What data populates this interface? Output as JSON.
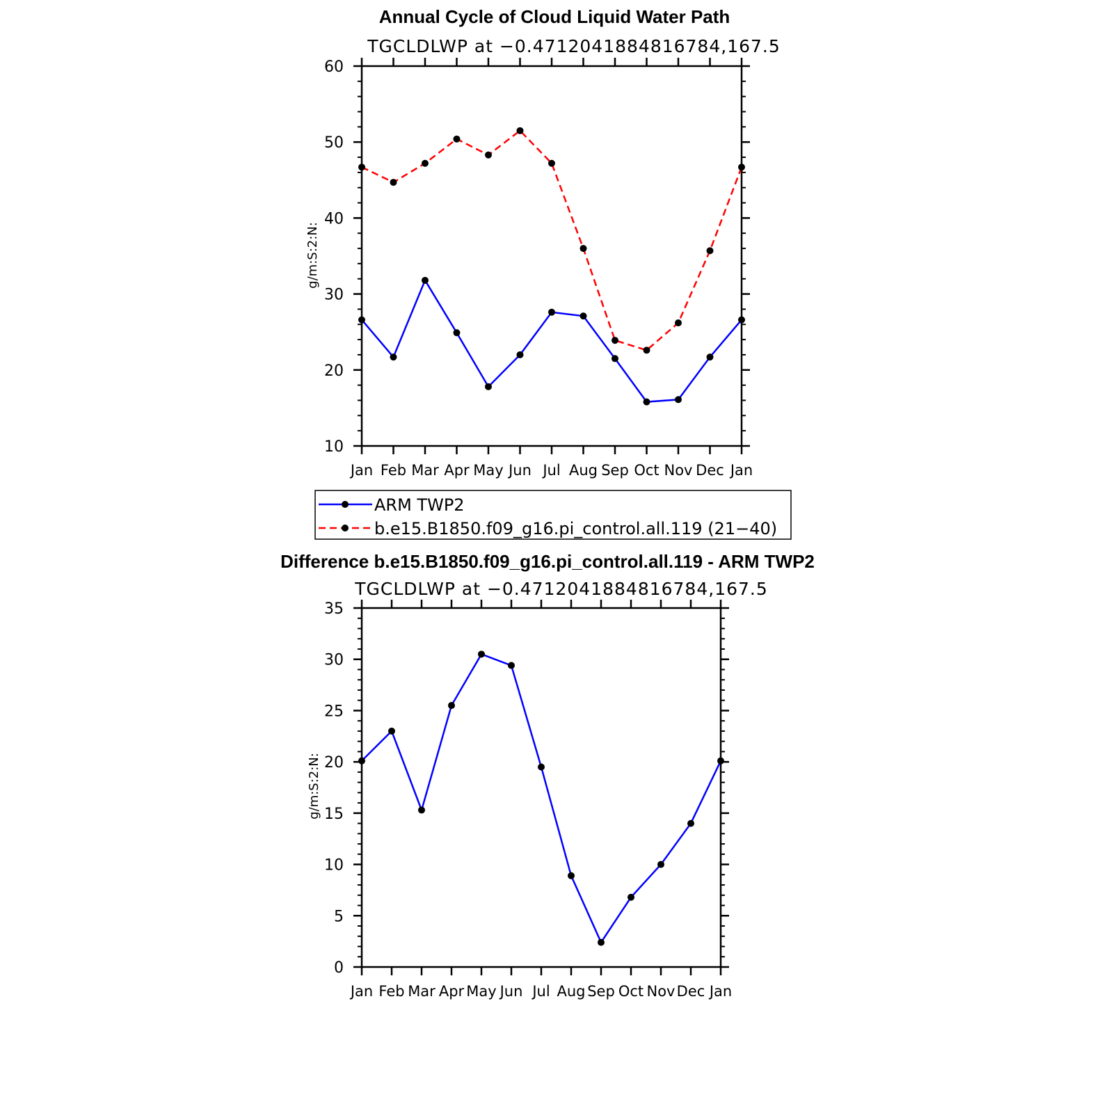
{
  "chart_data": [
    {
      "type": "line",
      "title": "Annual Cycle of Cloud Liquid Water Path",
      "subtitle": "TGCLDLWP at −0.4712041884816784,167.5",
      "xlabel": "",
      "ylabel": "g/m:S:2:N:",
      "categories": [
        "Jan",
        "Feb",
        "Mar",
        "Apr",
        "May",
        "Jun",
        "Jul",
        "Aug",
        "Sep",
        "Oct",
        "Nov",
        "Dec",
        "Jan"
      ],
      "ylim": [
        10,
        60
      ],
      "yticks": [
        "10",
        "20",
        "30",
        "40",
        "50",
        "60"
      ],
      "series": [
        {
          "name": "ARM  TWP2",
          "color": "#0000ff",
          "style": "solid",
          "values": [
            26.6,
            21.7,
            31.8,
            24.9,
            17.8,
            22.0,
            27.6,
            27.1,
            21.5,
            15.8,
            16.1,
            21.7,
            26.6
          ]
        },
        {
          "name": "b.e15.B1850.f09_g16.pi_control.all.119  (21−40)",
          "color": "#ff0000",
          "style": "dashed",
          "values": [
            46.7,
            44.7,
            47.2,
            50.4,
            48.3,
            51.5,
            47.2,
            36.0,
            23.9,
            22.6,
            26.2,
            35.7,
            46.7
          ]
        }
      ],
      "legend": "below"
    },
    {
      "type": "line",
      "title": "Difference b.e15.B1850.f09_g16.pi_control.all.119 - ARM TWP2",
      "subtitle": "TGCLDLWP at −0.4712041884816784,167.5",
      "xlabel": "",
      "ylabel": "g/m:S:2:N:",
      "categories": [
        "Jan",
        "Feb",
        "Mar",
        "Apr",
        "May",
        "Jun",
        "Jul",
        "Aug",
        "Sep",
        "Oct",
        "Nov",
        "Dec",
        "Jan"
      ],
      "ylim": [
        0,
        35
      ],
      "yticks": [
        "0",
        "5",
        "10",
        "15",
        "20",
        "25",
        "30",
        "35"
      ],
      "series": [
        {
          "name": "Difference",
          "color": "#0000ff",
          "style": "solid",
          "values": [
            20.1,
            23.0,
            15.3,
            25.5,
            30.5,
            29.4,
            19.5,
            8.9,
            2.4,
            6.8,
            10.0,
            14.0,
            20.1
          ]
        }
      ]
    }
  ]
}
